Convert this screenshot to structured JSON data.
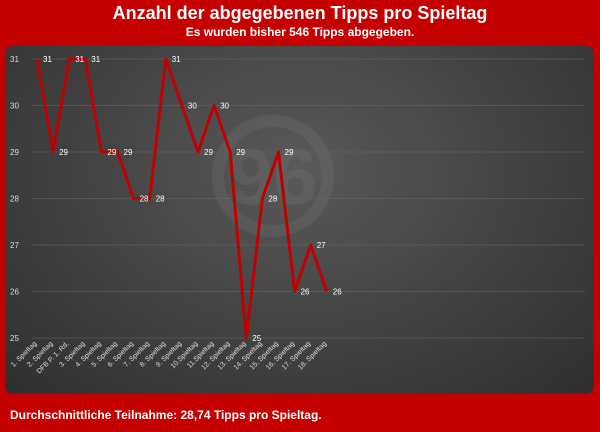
{
  "title": "Anzahl der abgegebenen Tipps pro Spieltag",
  "subtitle": "Es wurden bisher 546 Tipps abgegeben.",
  "footer": "Durchschnittliche Teilnahme: 28,74 Tipps pro Spieltag.",
  "colors": {
    "background": "#c40000",
    "line": "#c00000",
    "text": "#ffffff",
    "panel": "#3c3c3c"
  },
  "chart_data": {
    "type": "line",
    "title": "Anzahl der abgegebenen Tipps pro Spieltag",
    "subtitle": "Es wurden bisher 546 Tipps abgegeben.",
    "xlabel": "",
    "ylabel": "",
    "categories": [
      "1. Spieltag",
      "2. Spieltag",
      "DFB P. 1. Rd.",
      "3. Spieltag",
      "4. Spieltag",
      "5. Spieltag",
      "6. Spieltag",
      "7. Spieltag",
      "8. Spieltag",
      "9. Spieltag",
      "10.Spieltag",
      "11.Spieltag",
      "12. Spieltag",
      "13. Spieltag",
      "14. Spieltag",
      "15. Spieltag",
      "16. Spieltag",
      "17. Spieltag",
      "18. Spieltag"
    ],
    "series": [
      {
        "values": [
          31,
          29,
          31,
          31,
          29,
          29,
          28,
          28,
          31,
          30,
          29,
          30,
          29,
          25,
          28,
          29,
          26,
          27,
          26
        ]
      }
    ],
    "yticks": [
      25,
      26,
      27,
      28,
      29,
      30,
      31
    ],
    "ylim": [
      25,
      31
    ],
    "grid": true,
    "legend": "none"
  }
}
